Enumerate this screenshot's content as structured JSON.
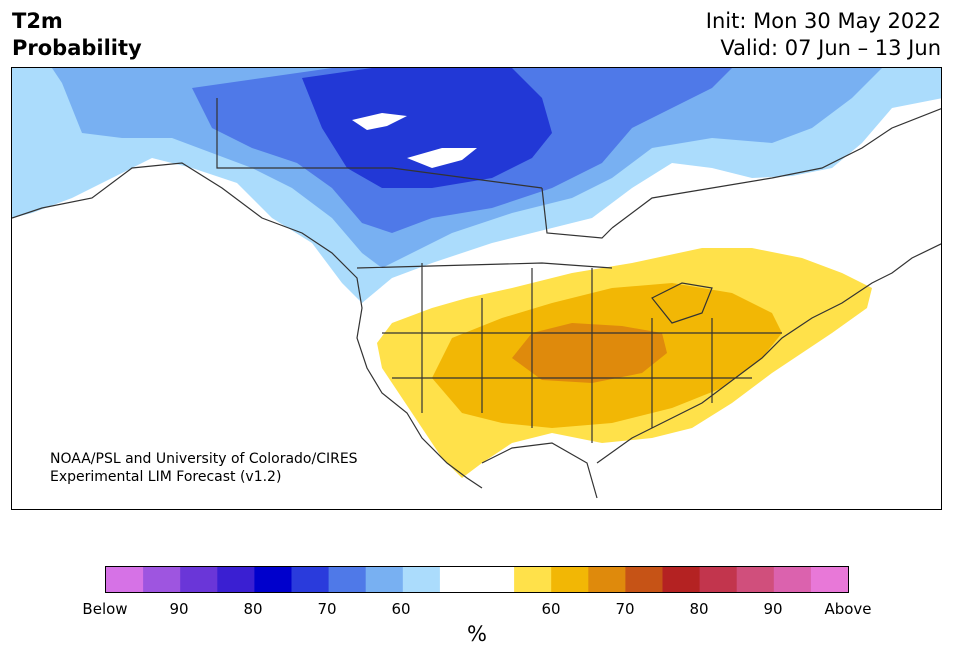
{
  "header": {
    "title_line1": "T2m",
    "title_line2": "Probability",
    "init_label": "Init: Mon 30 May 2022",
    "valid_label": "Valid: 07 Jun – 13 Jun"
  },
  "map": {
    "credit_line1": "NOAA/PSL and University of Colorado/CIRES",
    "credit_line2": "Experimental LIM Forecast (v1.2)"
  },
  "colorbar": {
    "unit": "%",
    "tick_labels": [
      "Below",
      "90",
      "80",
      "70",
      "60",
      "60",
      "70",
      "80",
      "90",
      "Above"
    ],
    "colors": [
      "#d672e6",
      "#9e55e0",
      "#6a36d8",
      "#3a1fd2",
      "#0000cc",
      "#2a3bdc",
      "#4f79e8",
      "#78b0f2",
      "#abdcfc",
      "#ffffff",
      "#ffffff",
      "#ffe14a",
      "#f2b705",
      "#df8a0c",
      "#c65316",
      "#b42222",
      "#c2354d",
      "#d04f7c",
      "#db62ae",
      "#e878d8"
    ]
  },
  "colors": {
    "below_strong": "#2238d6",
    "below_mid": "#4f79e8",
    "below_light": "#78b0f2",
    "below_faint": "#abdcfc",
    "above_faint": "#ffe14a",
    "above_light": "#f2b705",
    "above_mid": "#df8a0c",
    "coast": "#333333"
  }
}
